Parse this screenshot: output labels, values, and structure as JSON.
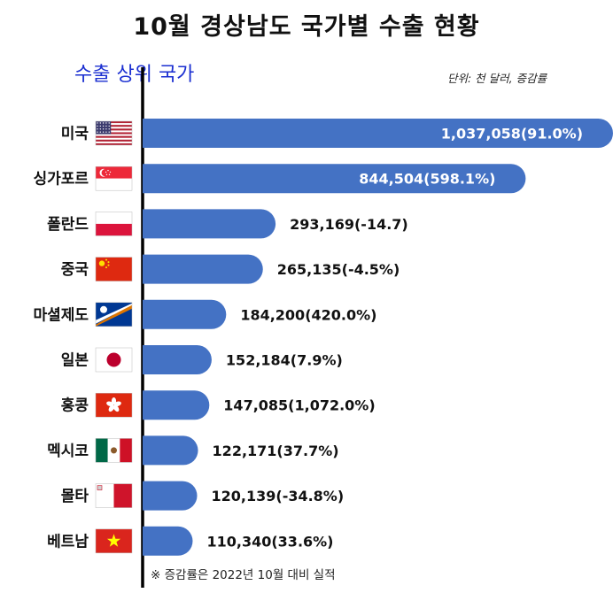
{
  "header": {
    "title": "10월 경상남도 국가별 수출 현황",
    "subtitle": "수출 상위 국가",
    "unit": "단위: 천 달러, 증감률",
    "footnote": "※ 증감률은 2022년 10월 대비 실적"
  },
  "colors": {
    "bar": "#4472c4",
    "label_inside": "#ffffff",
    "label_outside": "#111111",
    "subtitle": "#1b2fd1"
  },
  "chart_data": {
    "type": "bar",
    "orientation": "horizontal",
    "categories": [
      "미국",
      "싱가포르",
      "폴란드",
      "중국",
      "마셜제도",
      "일본",
      "홍콩",
      "멕시코",
      "몰타",
      "베트남"
    ],
    "values": [
      1037058,
      844504,
      293169,
      265135,
      184200,
      152184,
      147085,
      122171,
      120139,
      110340
    ],
    "data_labels": [
      "1,037,058(91.0%)",
      "844,504(598.1%)",
      "293,169(-14.7)",
      "265,135(-4.5%)",
      "184,200(420.0%)",
      "152,184(7.9%)",
      "147,085(1,072.0%)",
      "122,171(37.7%)",
      "120,139(-34.8%)",
      "110,340(33.6%)"
    ],
    "flags": [
      "us-flag-icon",
      "singapore-flag-icon",
      "poland-flag-icon",
      "china-flag-icon",
      "marshall-islands-flag-icon",
      "japan-flag-icon",
      "hong-kong-flag-icon",
      "mexico-flag-icon",
      "malta-flag-icon",
      "vietnam-flag-icon"
    ],
    "xlim": [
      0,
      1037058
    ],
    "grid": false,
    "legend": "none"
  }
}
